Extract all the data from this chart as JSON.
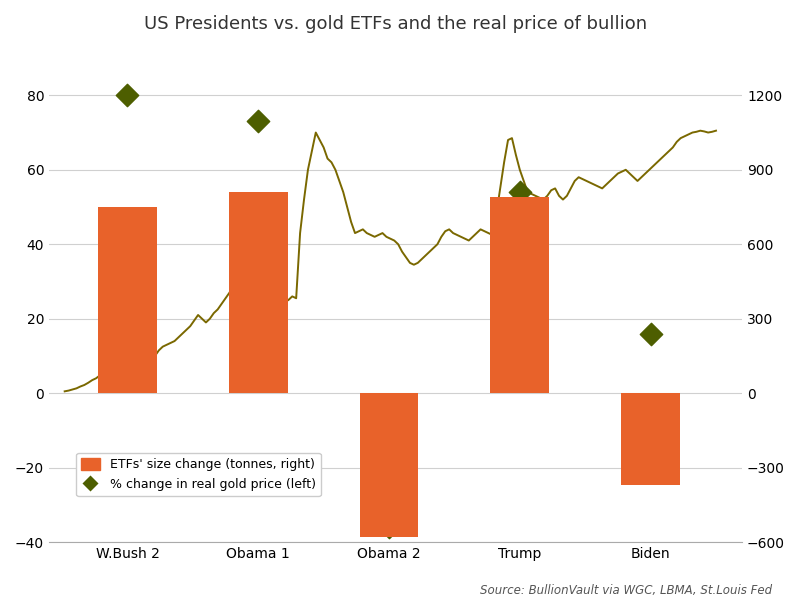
{
  "title": "US Presidents vs. gold ETFs and the real price of bullion",
  "source": "Source: BullionVault via WGC, LBMA, St.Louis Fed",
  "presidents": [
    "W.Bush 2",
    "Obama 1",
    "Obama 2",
    "Trump",
    "Biden"
  ],
  "bar_values_right": [
    750,
    810,
    -580,
    790,
    -370
  ],
  "diamond_pct_left": [
    80,
    73,
    -36,
    54,
    16
  ],
  "bar_color": "#E8622A",
  "line_color": "#7a6800",
  "diamond_color": "#4d5e00",
  "left_ylim": [
    -40,
    93.33
  ],
  "right_ylim": [
    -600,
    1400
  ],
  "left_yticks": [
    -40,
    -20,
    0,
    20,
    40,
    60,
    80
  ],
  "right_yticks": [
    -600,
    -300,
    0,
    300,
    600,
    900,
    1200
  ],
  "background_color": "#ffffff",
  "grid_color": "#d0d0d0",
  "bar_width": 0.45,
  "bar_positions": [
    1,
    2,
    3,
    4,
    5
  ],
  "line_x": [
    0.52,
    0.55,
    0.58,
    0.61,
    0.64,
    0.67,
    0.7,
    0.73,
    0.76,
    0.79,
    0.82,
    0.85,
    0.88,
    0.91,
    0.94,
    0.97,
    1.0,
    1.03,
    1.06,
    1.09,
    1.12,
    1.15,
    1.18,
    1.21,
    1.24,
    1.27,
    1.3,
    1.33,
    1.36,
    1.39,
    1.42,
    1.45,
    1.48,
    1.51,
    1.54,
    1.57,
    1.6,
    1.63,
    1.66,
    1.69,
    1.72,
    1.75,
    1.78,
    1.81,
    1.84,
    1.87,
    1.9,
    1.93,
    1.96,
    1.99,
    2.02,
    2.05,
    2.08,
    2.11,
    2.14,
    2.17,
    2.2,
    2.23,
    2.26,
    2.29,
    2.32,
    2.35,
    2.38,
    2.41,
    2.44,
    2.47,
    2.5,
    2.53,
    2.56,
    2.59,
    2.62,
    2.65,
    2.68,
    2.71,
    2.74,
    2.77,
    2.8,
    2.83,
    2.86,
    2.89,
    2.92,
    2.95,
    2.98,
    3.01,
    3.04,
    3.07,
    3.1,
    3.13,
    3.16,
    3.19,
    3.22,
    3.25,
    3.28,
    3.31,
    3.34,
    3.37,
    3.4,
    3.43,
    3.46,
    3.49,
    3.52,
    3.55,
    3.58,
    3.61,
    3.64,
    3.67,
    3.7,
    3.73,
    3.76,
    3.79,
    3.82,
    3.85,
    3.88,
    3.91,
    3.94,
    3.97,
    4.0,
    4.03,
    4.06,
    4.09,
    4.12,
    4.15,
    4.18,
    4.21,
    4.24,
    4.27,
    4.3,
    4.33,
    4.36,
    4.39,
    4.42,
    4.45,
    4.48,
    4.51,
    4.54,
    4.57,
    4.6,
    4.63,
    4.66,
    4.69,
    4.72,
    4.75,
    4.78,
    4.81,
    4.84,
    4.87,
    4.9,
    4.93,
    4.96,
    4.99,
    5.02,
    5.05,
    5.08,
    5.11,
    5.14,
    5.17,
    5.2,
    5.23,
    5.26,
    5.29,
    5.32,
    5.35,
    5.38,
    5.41,
    5.44,
    5.47,
    5.5
  ],
  "line_y_left": [
    0.5,
    0.7,
    1.0,
    1.3,
    1.8,
    2.2,
    2.8,
    3.5,
    4.0,
    4.8,
    5.3,
    6.0,
    6.5,
    7.2,
    7.8,
    8.0,
    8.5,
    8.0,
    7.5,
    7.0,
    7.5,
    8.0,
    9.0,
    10.0,
    11.5,
    12.5,
    13.0,
    13.5,
    14.0,
    15.0,
    16.0,
    17.0,
    18.0,
    19.5,
    21.0,
    20.0,
    19.0,
    20.0,
    21.5,
    22.5,
    24.0,
    25.5,
    27.0,
    29.0,
    31.0,
    33.0,
    35.0,
    33.0,
    30.0,
    27.0,
    25.0,
    24.5,
    25.0,
    26.0,
    25.0,
    24.0,
    24.5,
    25.0,
    26.0,
    25.5,
    43.0,
    52.0,
    60.0,
    65.0,
    70.0,
    68.0,
    66.0,
    63.0,
    62.0,
    60.0,
    57.0,
    54.0,
    50.0,
    46.0,
    43.0,
    43.5,
    44.0,
    43.0,
    42.5,
    42.0,
    42.5,
    43.0,
    42.0,
    41.5,
    41.0,
    40.0,
    38.0,
    36.5,
    35.0,
    34.5,
    35.0,
    36.0,
    37.0,
    38.0,
    39.0,
    40.0,
    42.0,
    43.5,
    44.0,
    43.0,
    42.5,
    42.0,
    41.5,
    41.0,
    42.0,
    43.0,
    44.0,
    43.5,
    43.0,
    42.5,
    48.0,
    55.0,
    62.0,
    68.0,
    68.5,
    64.0,
    60.0,
    57.0,
    54.0,
    53.5,
    53.0,
    52.5,
    52.0,
    53.0,
    54.5,
    55.0,
    53.0,
    52.0,
    53.0,
    55.0,
    57.0,
    58.0,
    57.5,
    57.0,
    56.5,
    56.0,
    55.5,
    55.0,
    56.0,
    57.0,
    58.0,
    59.0,
    59.5,
    60.0,
    59.0,
    58.0,
    57.0,
    58.0,
    59.0,
    60.0,
    61.0,
    62.0,
    63.0,
    64.0,
    65.0,
    66.0,
    67.5,
    68.5,
    69.0,
    69.5,
    70.0,
    70.2,
    70.5,
    70.3,
    70.0,
    70.2,
    70.5
  ]
}
